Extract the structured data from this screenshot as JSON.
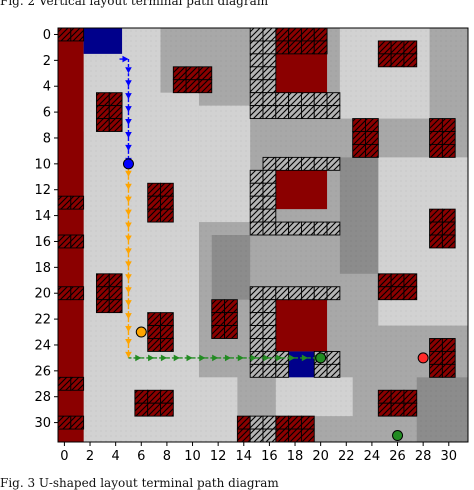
{
  "captions": {
    "top": "Fig. 2 Vertical layout terminal path diagram",
    "bottom": "Fig. 3 U-shaped layout terminal path diagram"
  },
  "colors": {
    "background_light": "#d2d2d2",
    "background_mid": "#a8a8a8",
    "background_dark": "#8c8c8c",
    "obstacle_red": "#8b0000",
    "hatched_red": "#8b0000",
    "hatched_gray": "#b4b4b4",
    "blue_block": "#00008b",
    "path_blue": "#0000ff",
    "path_orange": "#ffa500",
    "path_green": "#228b22",
    "marker_red": "#ff2a2a"
  },
  "chart_data": {
    "type": "heatmap",
    "title": "",
    "xlabel": "",
    "ylabel": "",
    "xlim": [
      -0.5,
      31.5
    ],
    "ylim": [
      31.5,
      -0.5
    ],
    "x_ticks": [
      0,
      2,
      4,
      6,
      8,
      10,
      12,
      14,
      16,
      18,
      20,
      22,
      24,
      26,
      28,
      30
    ],
    "y_ticks": [
      0,
      2,
      4,
      6,
      8,
      10,
      12,
      14,
      16,
      18,
      20,
      22,
      24,
      26,
      28,
      30
    ],
    "grid": false,
    "solid_blocks": [
      {
        "kind": "red",
        "x": [
          0,
          1
        ],
        "y": [
          0,
          31
        ]
      },
      {
        "kind": "red",
        "x": [
          17,
          20
        ],
        "y": [
          2,
          4
        ]
      },
      {
        "kind": "red",
        "x": [
          17,
          20
        ],
        "y": [
          11,
          13
        ]
      },
      {
        "kind": "red",
        "x": [
          17,
          20
        ],
        "y": [
          21,
          24
        ]
      },
      {
        "kind": "blue",
        "x": [
          2,
          4
        ],
        "y": [
          0,
          1
        ]
      },
      {
        "kind": "blue",
        "x": [
          18,
          19
        ],
        "y": [
          25,
          26
        ]
      }
    ],
    "hatched_blocks": [
      {
        "kind": "red",
        "x": [
          0,
          1
        ],
        "y": [
          0,
          0
        ]
      },
      {
        "kind": "red",
        "x": [
          0,
          1
        ],
        "y": [
          13,
          13
        ]
      },
      {
        "kind": "red",
        "x": [
          0,
          1
        ],
        "y": [
          16,
          16
        ]
      },
      {
        "kind": "red",
        "x": [
          0,
          1
        ],
        "y": [
          20,
          20
        ]
      },
      {
        "kind": "red",
        "x": [
          0,
          1
        ],
        "y": [
          27,
          27
        ]
      },
      {
        "kind": "red",
        "x": [
          0,
          1
        ],
        "y": [
          30,
          30
        ]
      },
      {
        "kind": "red",
        "x": [
          3,
          4
        ],
        "y": [
          5,
          7
        ]
      },
      {
        "kind": "red",
        "x": [
          9,
          11
        ],
        "y": [
          3,
          4
        ]
      },
      {
        "kind": "red",
        "x": [
          7,
          8
        ],
        "y": [
          12,
          14
        ]
      },
      {
        "kind": "red",
        "x": [
          3,
          4
        ],
        "y": [
          19,
          21
        ]
      },
      {
        "kind": "red",
        "x": [
          7,
          8
        ],
        "y": [
          22,
          24
        ]
      },
      {
        "kind": "red",
        "x": [
          12,
          13
        ],
        "y": [
          21,
          23
        ]
      },
      {
        "kind": "red",
        "x": [
          17,
          20
        ],
        "y": [
          0,
          1
        ]
      },
      {
        "kind": "red",
        "x": [
          25,
          27
        ],
        "y": [
          1,
          2
        ]
      },
      {
        "kind": "red",
        "x": [
          23,
          24
        ],
        "y": [
          7,
          9
        ]
      },
      {
        "kind": "red",
        "x": [
          29,
          30
        ],
        "y": [
          7,
          9
        ]
      },
      {
        "kind": "red",
        "x": [
          29,
          30
        ],
        "y": [
          14,
          16
        ]
      },
      {
        "kind": "red",
        "x": [
          25,
          27
        ],
        "y": [
          19,
          20
        ]
      },
      {
        "kind": "red",
        "x": [
          29,
          30
        ],
        "y": [
          24,
          26
        ]
      },
      {
        "kind": "red",
        "x": [
          6,
          8
        ],
        "y": [
          28,
          29
        ]
      },
      {
        "kind": "red",
        "x": [
          25,
          27
        ],
        "y": [
          28,
          29
        ]
      },
      {
        "kind": "red",
        "x": [
          14,
          14
        ],
        "y": [
          30,
          31
        ]
      },
      {
        "kind": "red",
        "x": [
          17,
          19
        ],
        "y": [
          30,
          31
        ]
      },
      {
        "kind": "gray",
        "x": [
          15,
          16
        ],
        "y": [
          0,
          6
        ]
      },
      {
        "kind": "gray",
        "x": [
          17,
          21
        ],
        "y": [
          5,
          6
        ]
      },
      {
        "kind": "gray",
        "x": [
          16,
          21
        ],
        "y": [
          10,
          10
        ]
      },
      {
        "kind": "gray",
        "x": [
          15,
          16
        ],
        "y": [
          11,
          15
        ]
      },
      {
        "kind": "gray",
        "x": [
          17,
          21
        ],
        "y": [
          15,
          15
        ]
      },
      {
        "kind": "gray",
        "x": [
          15,
          21
        ],
        "y": [
          20,
          20
        ]
      },
      {
        "kind": "gray",
        "x": [
          15,
          16
        ],
        "y": [
          21,
          26
        ]
      },
      {
        "kind": "gray",
        "x": [
          17,
          17
        ],
        "y": [
          25,
          26
        ]
      },
      {
        "kind": "gray",
        "x": [
          20,
          21
        ],
        "y": [
          25,
          26
        ]
      },
      {
        "kind": "gray",
        "x": [
          15,
          16
        ],
        "y": [
          30,
          31
        ]
      }
    ],
    "series": [
      {
        "color": "blue",
        "points": [
          [
            4.3,
            1.9
          ],
          [
            5,
            1.9
          ],
          [
            5,
            3
          ],
          [
            5,
            4
          ],
          [
            5,
            5
          ],
          [
            5,
            6
          ],
          [
            5,
            7
          ],
          [
            5,
            8
          ],
          [
            5,
            9
          ],
          [
            5,
            10
          ]
        ]
      },
      {
        "color": "orange",
        "points": [
          [
            5,
            10
          ],
          [
            5,
            11
          ],
          [
            5,
            12
          ],
          [
            5,
            13
          ],
          [
            5,
            14
          ],
          [
            5,
            15
          ],
          [
            5,
            16
          ],
          [
            5,
            17
          ],
          [
            5,
            18
          ],
          [
            5,
            19
          ],
          [
            5,
            20
          ],
          [
            5,
            21
          ],
          [
            5,
            22
          ],
          [
            5,
            23
          ],
          [
            5,
            24
          ],
          [
            5,
            25
          ]
        ]
      },
      {
        "color": "green",
        "points": [
          [
            5,
            25
          ],
          [
            6,
            25
          ],
          [
            7,
            25
          ],
          [
            8,
            25
          ],
          [
            9,
            25
          ],
          [
            10,
            25
          ],
          [
            11,
            25
          ],
          [
            12,
            25
          ],
          [
            13,
            25
          ],
          [
            14,
            25
          ],
          [
            15,
            25
          ],
          [
            16,
            25
          ],
          [
            17,
            25
          ],
          [
            18,
            25
          ],
          [
            19,
            25
          ],
          [
            20,
            25
          ]
        ]
      }
    ],
    "markers": [
      {
        "x": 5,
        "y": 10,
        "color": "blue"
      },
      {
        "x": 6,
        "y": 23,
        "color": "orange"
      },
      {
        "x": 20,
        "y": 25,
        "color": "green"
      },
      {
        "x": 28,
        "y": 25,
        "color": "red"
      },
      {
        "x": 26,
        "y": 31,
        "color": "green"
      }
    ]
  }
}
